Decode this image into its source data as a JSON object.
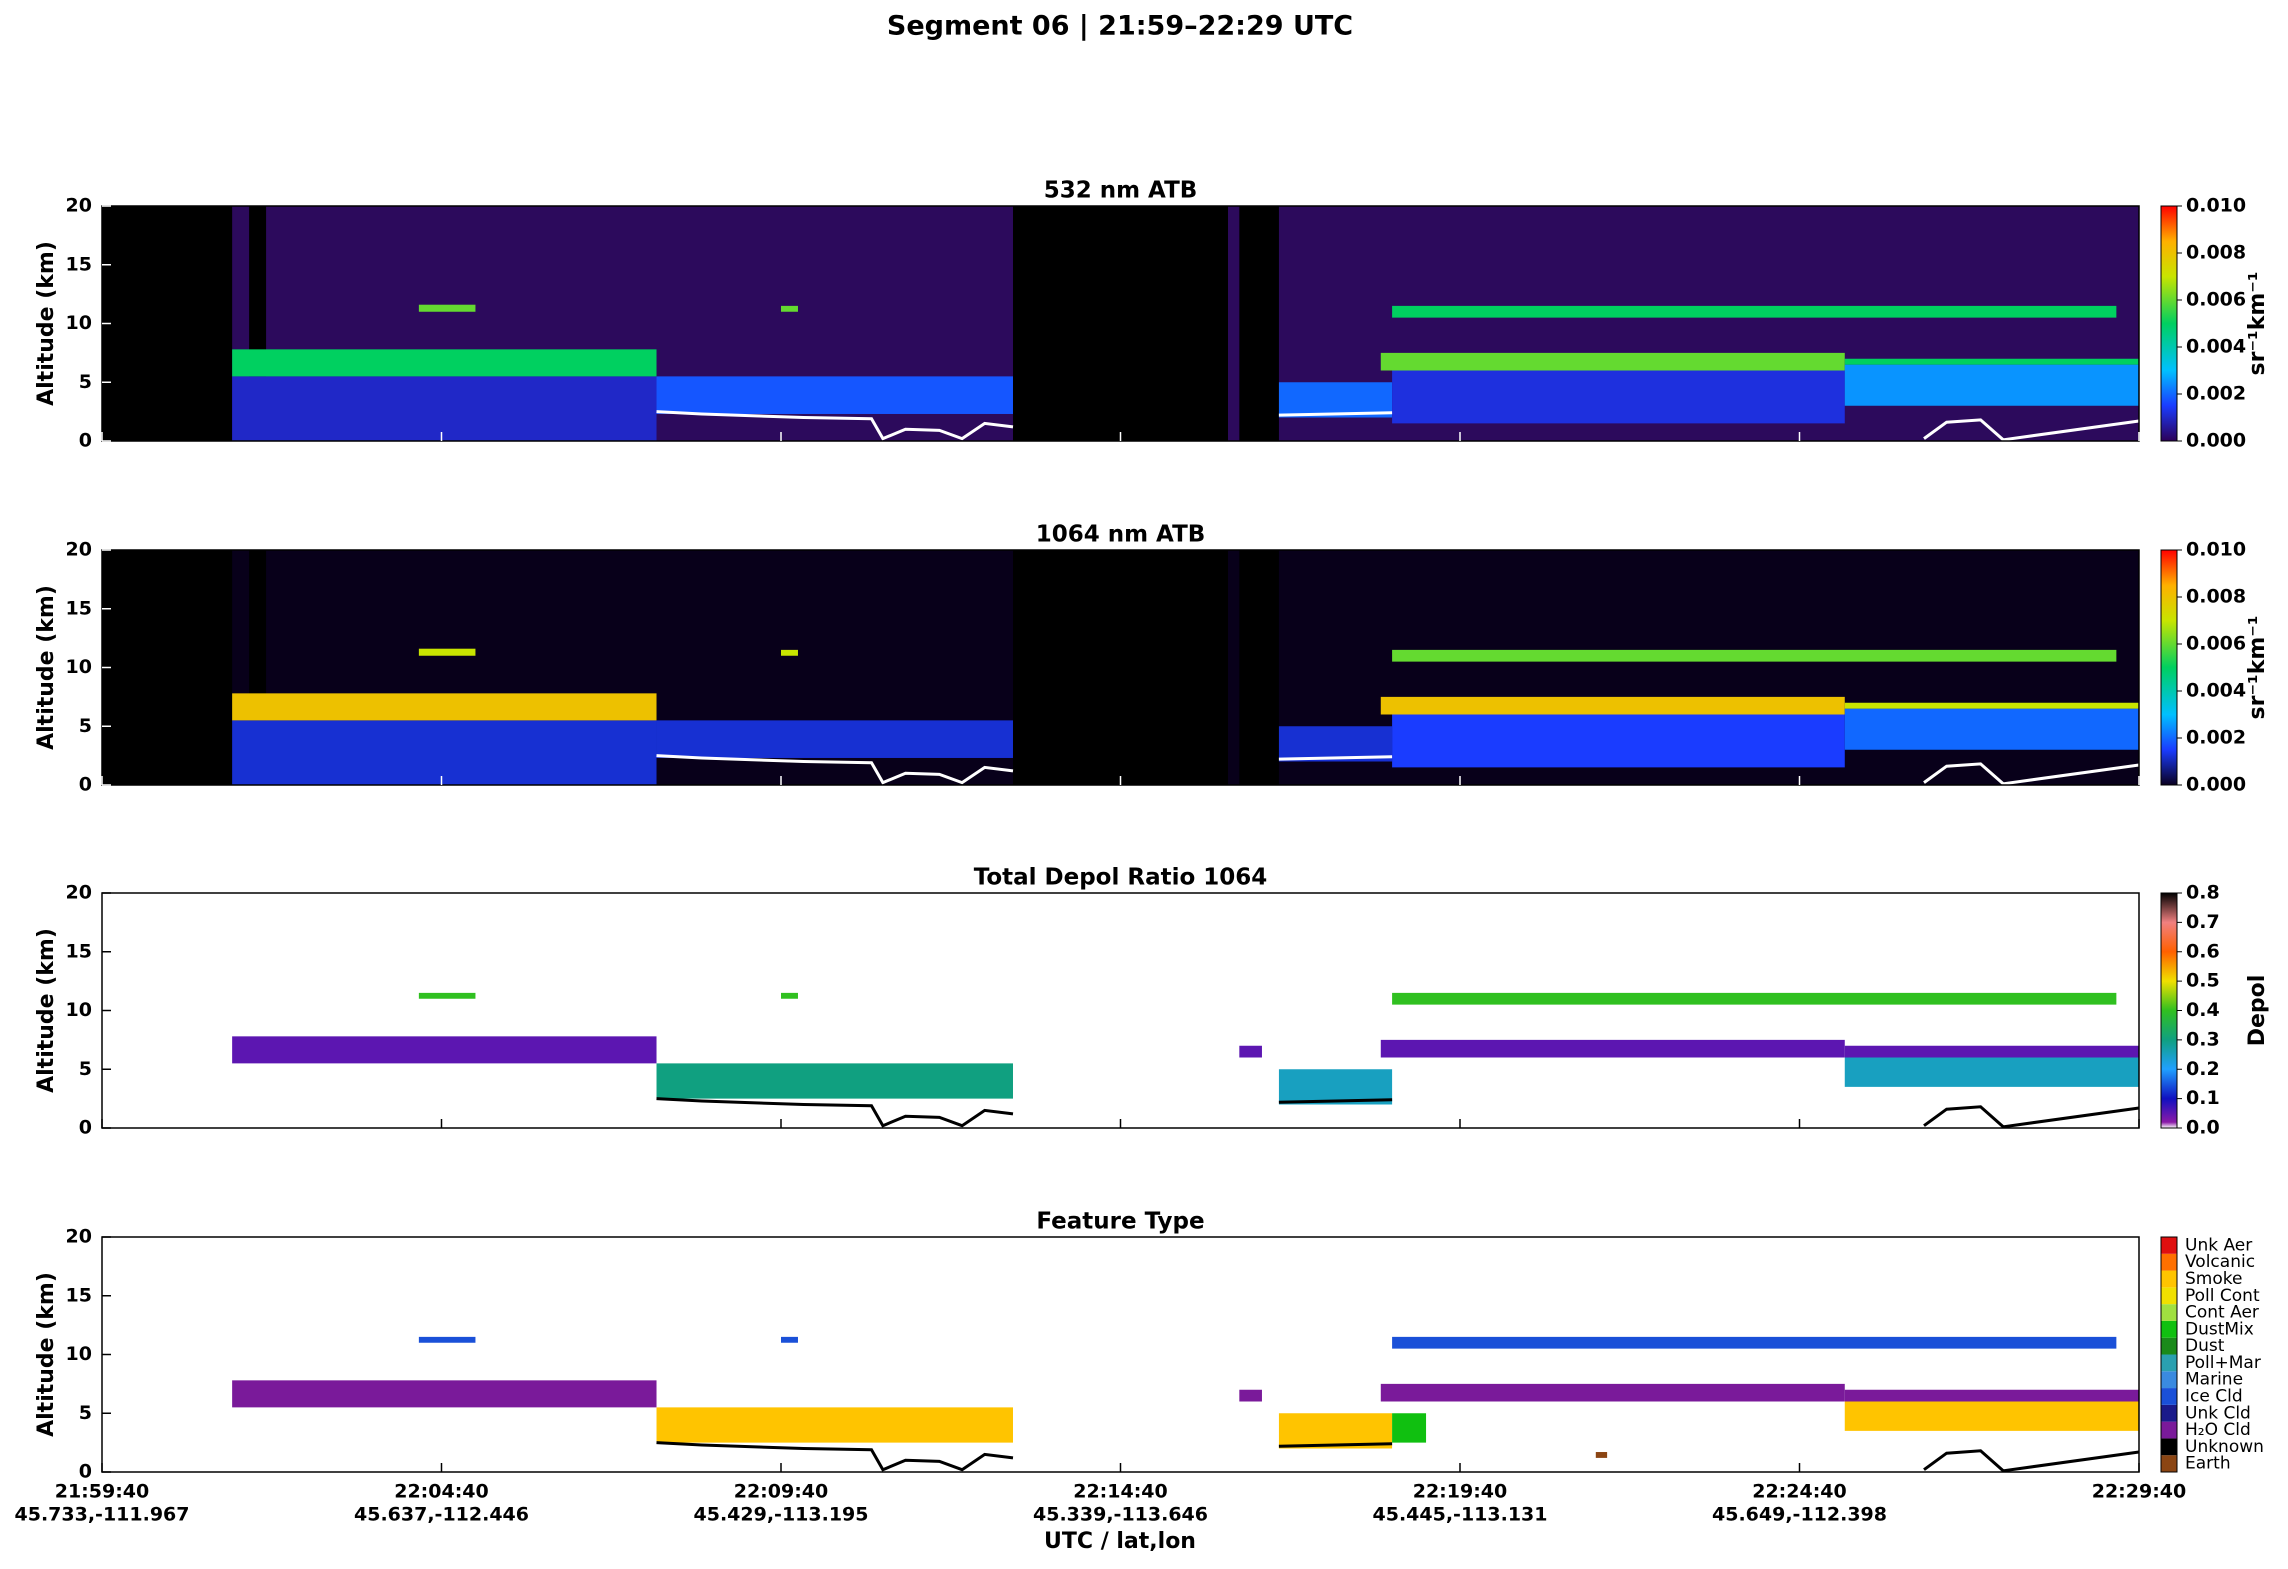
{
  "title": "Segment 06  |  21:59–22:29 UTC",
  "x_axis": {
    "label": "UTC / lat,lon",
    "xlim": [
      "21:59:40",
      "22:29:40"
    ],
    "xticks": [
      "21:59:40",
      "22:04:40",
      "22:09:40",
      "22:14:40",
      "22:19:40",
      "22:24:40",
      "22:29:40"
    ],
    "coords": [
      "45.733,-111.967",
      "45.637,-112.446",
      "45.429,-113.195",
      "45.339,-113.646",
      "45.445,-113.131",
      "45.649,-112.398",
      null
    ]
  },
  "chart_data": [
    {
      "type": "curtain",
      "title": "532 nm ATB",
      "ylabel": "Altitude (km)",
      "ylim": [
        0,
        20
      ],
      "yticks": [
        0,
        5,
        10,
        15,
        20
      ],
      "background": "#2c0a5c",
      "surface_color": "#ffffff",
      "colorbar_label": "sr⁻¹km⁻¹",
      "clim": [
        0,
        0.01
      ],
      "colormap": [
        [
          0,
          "#2c0058"
        ],
        [
          0.0015,
          "#1a3cff"
        ],
        [
          0.003,
          "#00c0ff"
        ],
        [
          0.005,
          "#00d060"
        ],
        [
          0.007,
          "#c8e400"
        ],
        [
          0.0085,
          "#ffb000"
        ],
        [
          0.01,
          "#ff0000"
        ]
      ],
      "cticks": [
        {
          "value": 0,
          "label": "0.000"
        },
        {
          "value": 0.002,
          "label": "0.002"
        },
        {
          "value": 0.004,
          "label": "0.004"
        },
        {
          "value": 0.006,
          "label": "0.006"
        },
        {
          "value": 0.008,
          "label": "0.008"
        },
        {
          "value": 0.01,
          "label": "0.010"
        }
      ],
      "no_data": [
        {
          "start": "21:59:40",
          "end": "22:01:35"
        },
        {
          "start": "22:01:50",
          "end": "22:02:05"
        },
        {
          "start": "22:13:05",
          "end": "22:16:15"
        },
        {
          "start": "22:16:25",
          "end": "22:17:00"
        }
      ],
      "layers": [
        {
          "start": "22:01:35",
          "end": "22:07:50",
          "bottom": 0,
          "top": 5.5,
          "value": 0.001
        },
        {
          "start": "22:01:35",
          "end": "22:07:50",
          "bottom": 5.5,
          "top": 7.8,
          "value": 0.005
        },
        {
          "start": "22:04:20",
          "end": "22:05:10",
          "bottom": 11,
          "top": 11.6,
          "value": 0.006
        },
        {
          "start": "22:07:50",
          "end": "22:13:05",
          "bottom": 2.3,
          "top": 5.5,
          "value": 0.0018
        },
        {
          "start": "22:09:40",
          "end": "22:09:55",
          "bottom": 11,
          "top": 11.5,
          "value": 0.006
        },
        {
          "start": "22:17:00",
          "end": "22:18:40",
          "bottom": 2,
          "top": 5,
          "value": 0.002
        },
        {
          "start": "22:18:40",
          "end": "22:25:20",
          "bottom": 1.5,
          "top": 6,
          "value": 0.0012
        },
        {
          "start": "22:18:30",
          "end": "22:25:20",
          "bottom": 6,
          "top": 7.5,
          "value": 0.006
        },
        {
          "start": "22:18:40",
          "end": "22:29:20",
          "bottom": 10.5,
          "top": 11.5,
          "value": 0.005
        },
        {
          "start": "22:25:20",
          "end": "22:29:40",
          "bottom": 3,
          "top": 6.5,
          "value": 0.0025
        },
        {
          "start": "22:25:20",
          "end": "22:29:40",
          "bottom": 6.5,
          "top": 7,
          "value": 0.005
        }
      ],
      "surface": {
        "x": [
          "22:07:50",
          "22:08:30",
          "22:10:00",
          "22:11:00",
          "22:11:10",
          "22:11:30",
          "22:12:00",
          "22:12:20",
          "22:12:40",
          "22:13:05",
          "22:15:00",
          "22:17:00",
          "22:18:40",
          "22:25:00",
          "22:26:30",
          "22:26:50",
          "22:27:20",
          "22:27:40",
          "22:29:40"
        ],
        "alt": [
          2.5,
          2.3,
          2.0,
          1.9,
          0.2,
          1.0,
          0.9,
          0.2,
          1.5,
          1.2,
          null,
          2.2,
          2.4,
          null,
          0.2,
          1.6,
          1.8,
          0.1,
          1.7
        ]
      }
    },
    {
      "type": "curtain",
      "title": "1064 nm ATB",
      "ylabel": "Altitude (km)",
      "ylim": [
        0,
        20
      ],
      "yticks": [
        0,
        5,
        10,
        15,
        20
      ],
      "background": "#08001a",
      "surface_color": "#ffffff",
      "colorbar_label": "sr⁻¹km⁻¹",
      "clim": [
        0,
        0.01
      ],
      "colormap": [
        [
          0,
          "#0a0020"
        ],
        [
          0.0015,
          "#1a3cff"
        ],
        [
          0.003,
          "#00c0ff"
        ],
        [
          0.005,
          "#00d060"
        ],
        [
          0.007,
          "#c8e400"
        ],
        [
          0.0085,
          "#ffb000"
        ],
        [
          0.01,
          "#ff0000"
        ]
      ],
      "cticks": [
        {
          "value": 0,
          "label": "0.000"
        },
        {
          "value": 0.002,
          "label": "0.002"
        },
        {
          "value": 0.004,
          "label": "0.004"
        },
        {
          "value": 0.006,
          "label": "0.006"
        },
        {
          "value": 0.008,
          "label": "0.008"
        },
        {
          "value": 0.01,
          "label": "0.010"
        }
      ],
      "no_data": [
        {
          "start": "21:59:40",
          "end": "22:01:35"
        },
        {
          "start": "22:01:50",
          "end": "22:02:05"
        },
        {
          "start": "22:13:05",
          "end": "22:16:15"
        },
        {
          "start": "22:16:25",
          "end": "22:17:00"
        }
      ],
      "layers": [
        {
          "start": "22:01:35",
          "end": "22:07:50",
          "bottom": 0,
          "top": 5.5,
          "value": 0.0012
        },
        {
          "start": "22:01:35",
          "end": "22:07:50",
          "bottom": 5.5,
          "top": 7.8,
          "value": 0.008
        },
        {
          "start": "22:04:20",
          "end": "22:05:10",
          "bottom": 11,
          "top": 11.6,
          "value": 0.007
        },
        {
          "start": "22:07:50",
          "end": "22:13:05",
          "bottom": 2.3,
          "top": 5.5,
          "value": 0.0012
        },
        {
          "start": "22:09:40",
          "end": "22:09:55",
          "bottom": 11,
          "top": 11.5,
          "value": 0.007
        },
        {
          "start": "22:17:00",
          "end": "22:18:40",
          "bottom": 2,
          "top": 5,
          "value": 0.0012
        },
        {
          "start": "22:18:40",
          "end": "22:25:20",
          "bottom": 1.5,
          "top": 6,
          "value": 0.0015
        },
        {
          "start": "22:18:30",
          "end": "22:25:20",
          "bottom": 6,
          "top": 7.5,
          "value": 0.008
        },
        {
          "start": "22:18:40",
          "end": "22:29:20",
          "bottom": 10.5,
          "top": 11.5,
          "value": 0.006
        },
        {
          "start": "22:25:20",
          "end": "22:29:40",
          "bottom": 3,
          "top": 6.5,
          "value": 0.002
        },
        {
          "start": "22:25:20",
          "end": "22:29:40",
          "bottom": 6.5,
          "top": 7,
          "value": 0.007
        }
      ],
      "surface": {
        "x": [
          "22:07:50",
          "22:08:30",
          "22:10:00",
          "22:11:00",
          "22:11:10",
          "22:11:30",
          "22:12:00",
          "22:12:20",
          "22:12:40",
          "22:13:05",
          "22:15:00",
          "22:17:00",
          "22:18:40",
          "22:25:00",
          "22:26:30",
          "22:26:50",
          "22:27:20",
          "22:27:40",
          "22:29:40"
        ],
        "alt": [
          2.5,
          2.3,
          2.0,
          1.9,
          0.2,
          1.0,
          0.9,
          0.2,
          1.5,
          1.2,
          null,
          2.2,
          2.4,
          null,
          0.2,
          1.6,
          1.8,
          0.1,
          1.7
        ]
      }
    },
    {
      "type": "curtain",
      "title": "Total Depol Ratio 1064",
      "ylabel": "Altitude (km)",
      "ylim": [
        0,
        20
      ],
      "yticks": [
        0,
        5,
        10,
        15,
        20
      ],
      "background": "#ffffff",
      "surface_color": "#000000",
      "colorbar_label": "Depol",
      "clim": [
        0,
        0.8
      ],
      "colormap": [
        [
          0,
          "#ffffff"
        ],
        [
          0.02,
          "#8a1aa8"
        ],
        [
          0.1,
          "#1010c0"
        ],
        [
          0.2,
          "#20a0ff"
        ],
        [
          0.3,
          "#10a080"
        ],
        [
          0.4,
          "#30c020"
        ],
        [
          0.5,
          "#f0e000"
        ],
        [
          0.6,
          "#ff6000"
        ],
        [
          0.7,
          "#f08080"
        ],
        [
          0.8,
          "#000000"
        ]
      ],
      "cticks": [
        {
          "value": 0,
          "label": "0.0"
        },
        0.1,
        0.2,
        0.3,
        0.4,
        0.5,
        0.6,
        0.7,
        0.8
      ],
      "no_data": [],
      "layers": [
        {
          "start": "22:01:35",
          "end": "22:07:50",
          "bottom": 5.5,
          "top": 7.8,
          "value": 0.05
        },
        {
          "start": "22:04:20",
          "end": "22:05:10",
          "bottom": 11,
          "top": 11.5,
          "value": 0.4
        },
        {
          "start": "22:07:50",
          "end": "22:13:05",
          "bottom": 2.5,
          "top": 5.5,
          "value": 0.3
        },
        {
          "start": "22:09:40",
          "end": "22:09:55",
          "bottom": 11,
          "top": 11.5,
          "value": 0.4
        },
        {
          "start": "22:16:25",
          "end": "22:16:45",
          "bottom": 6,
          "top": 7,
          "value": 0.05
        },
        {
          "start": "22:17:00",
          "end": "22:18:40",
          "bottom": 2,
          "top": 5,
          "value": 0.25
        },
        {
          "start": "22:18:30",
          "end": "22:25:20",
          "bottom": 6,
          "top": 7.5,
          "value": 0.05
        },
        {
          "start": "22:18:40",
          "end": "22:29:20",
          "bottom": 10.5,
          "top": 11.5,
          "value": 0.4
        },
        {
          "start": "22:25:20",
          "end": "22:29:40",
          "bottom": 3.5,
          "top": 6,
          "value": 0.25
        },
        {
          "start": "22:25:20",
          "end": "22:29:40",
          "bottom": 6,
          "top": 7,
          "value": 0.05
        }
      ],
      "surface": {
        "x": [
          "22:07:50",
          "22:08:30",
          "22:10:00",
          "22:11:00",
          "22:11:10",
          "22:11:30",
          "22:12:00",
          "22:12:20",
          "22:12:40",
          "22:13:05",
          "22:15:00",
          "22:17:00",
          "22:18:40",
          "22:25:00",
          "22:26:30",
          "22:26:50",
          "22:27:20",
          "22:27:40",
          "22:29:40"
        ],
        "alt": [
          2.5,
          2.3,
          2.0,
          1.9,
          0.2,
          1.0,
          0.9,
          0.2,
          1.5,
          1.2,
          null,
          2.2,
          2.4,
          null,
          0.2,
          1.6,
          1.8,
          0.1,
          1.7
        ]
      }
    },
    {
      "type": "feature",
      "title": "Feature Type",
      "ylabel": "Altitude (km)",
      "ylim": [
        0,
        20
      ],
      "yticks": [
        0,
        5,
        10,
        15,
        20
      ],
      "background": "#ffffff",
      "surface_color": "#000000",
      "classes": [
        {
          "name": "Earth",
          "color": "#8b4513"
        },
        {
          "name": "Unknown",
          "color": "#000000"
        },
        {
          "name": "H₂O Cld",
          "color": "#7a1a9a"
        },
        {
          "name": "Unk Cld",
          "color": "#1a1a8a"
        },
        {
          "name": "Ice Cld",
          "color": "#1a50d8"
        },
        {
          "name": "Marine",
          "color": "#3a8ae0"
        },
        {
          "name": "Poll+Mar",
          "color": "#2aa0b0"
        },
        {
          "name": "Dust",
          "color": "#1a8a1a"
        },
        {
          "name": "DustMix",
          "color": "#10c010"
        },
        {
          "name": "Cont Aer",
          "color": "#a0e040"
        },
        {
          "name": "Poll Cont",
          "color": "#f0e000"
        },
        {
          "name": "Smoke",
          "color": "#ffc400"
        },
        {
          "name": "Volcanic",
          "color": "#ff7000"
        },
        {
          "name": "Unk Aer",
          "color": "#e01010"
        }
      ],
      "layers": [
        {
          "start": "22:01:35",
          "end": "22:07:50",
          "bottom": 5.5,
          "top": 7.8,
          "class": "H₂O Cld"
        },
        {
          "start": "22:04:20",
          "end": "22:05:10",
          "bottom": 11,
          "top": 11.5,
          "class": "Ice Cld"
        },
        {
          "start": "22:07:50",
          "end": "22:13:05",
          "bottom": 2.5,
          "top": 5.5,
          "class": "Smoke"
        },
        {
          "start": "22:09:40",
          "end": "22:09:55",
          "bottom": 11,
          "top": 11.5,
          "class": "Ice Cld"
        },
        {
          "start": "22:16:25",
          "end": "22:16:45",
          "bottom": 6,
          "top": 7,
          "class": "H₂O Cld"
        },
        {
          "start": "22:17:00",
          "end": "22:18:40",
          "bottom": 2,
          "top": 5,
          "class": "Smoke"
        },
        {
          "start": "22:18:40",
          "end": "22:19:10",
          "bottom": 2.5,
          "top": 5,
          "class": "DustMix"
        },
        {
          "start": "22:18:30",
          "end": "22:25:20",
          "bottom": 6,
          "top": 7.5,
          "class": "H₂O Cld"
        },
        {
          "start": "22:18:40",
          "end": "22:29:20",
          "bottom": 10.5,
          "top": 11.5,
          "class": "Ice Cld"
        },
        {
          "start": "22:25:20",
          "end": "22:29:40",
          "bottom": 3.5,
          "top": 6,
          "class": "Smoke"
        },
        {
          "start": "22:25:20",
          "end": "22:29:40",
          "bottom": 6,
          "top": 7,
          "class": "H₂O Cld"
        },
        {
          "start": "22:21:40",
          "end": "22:21:50",
          "bottom": 1.2,
          "top": 1.7,
          "class": "Earth"
        }
      ],
      "surface": {
        "x": [
          "22:07:50",
          "22:08:30",
          "22:10:00",
          "22:11:00",
          "22:11:10",
          "22:11:30",
          "22:12:00",
          "22:12:20",
          "22:12:40",
          "22:13:05",
          "22:15:00",
          "22:17:00",
          "22:18:40",
          "22:25:00",
          "22:26:30",
          "22:26:50",
          "22:27:20",
          "22:27:40",
          "22:29:40"
        ],
        "alt": [
          2.5,
          2.3,
          2.0,
          1.9,
          0.2,
          1.0,
          0.9,
          0.2,
          1.5,
          1.2,
          null,
          2.2,
          2.4,
          null,
          0.2,
          1.6,
          1.8,
          0.1,
          1.7
        ]
      }
    }
  ]
}
